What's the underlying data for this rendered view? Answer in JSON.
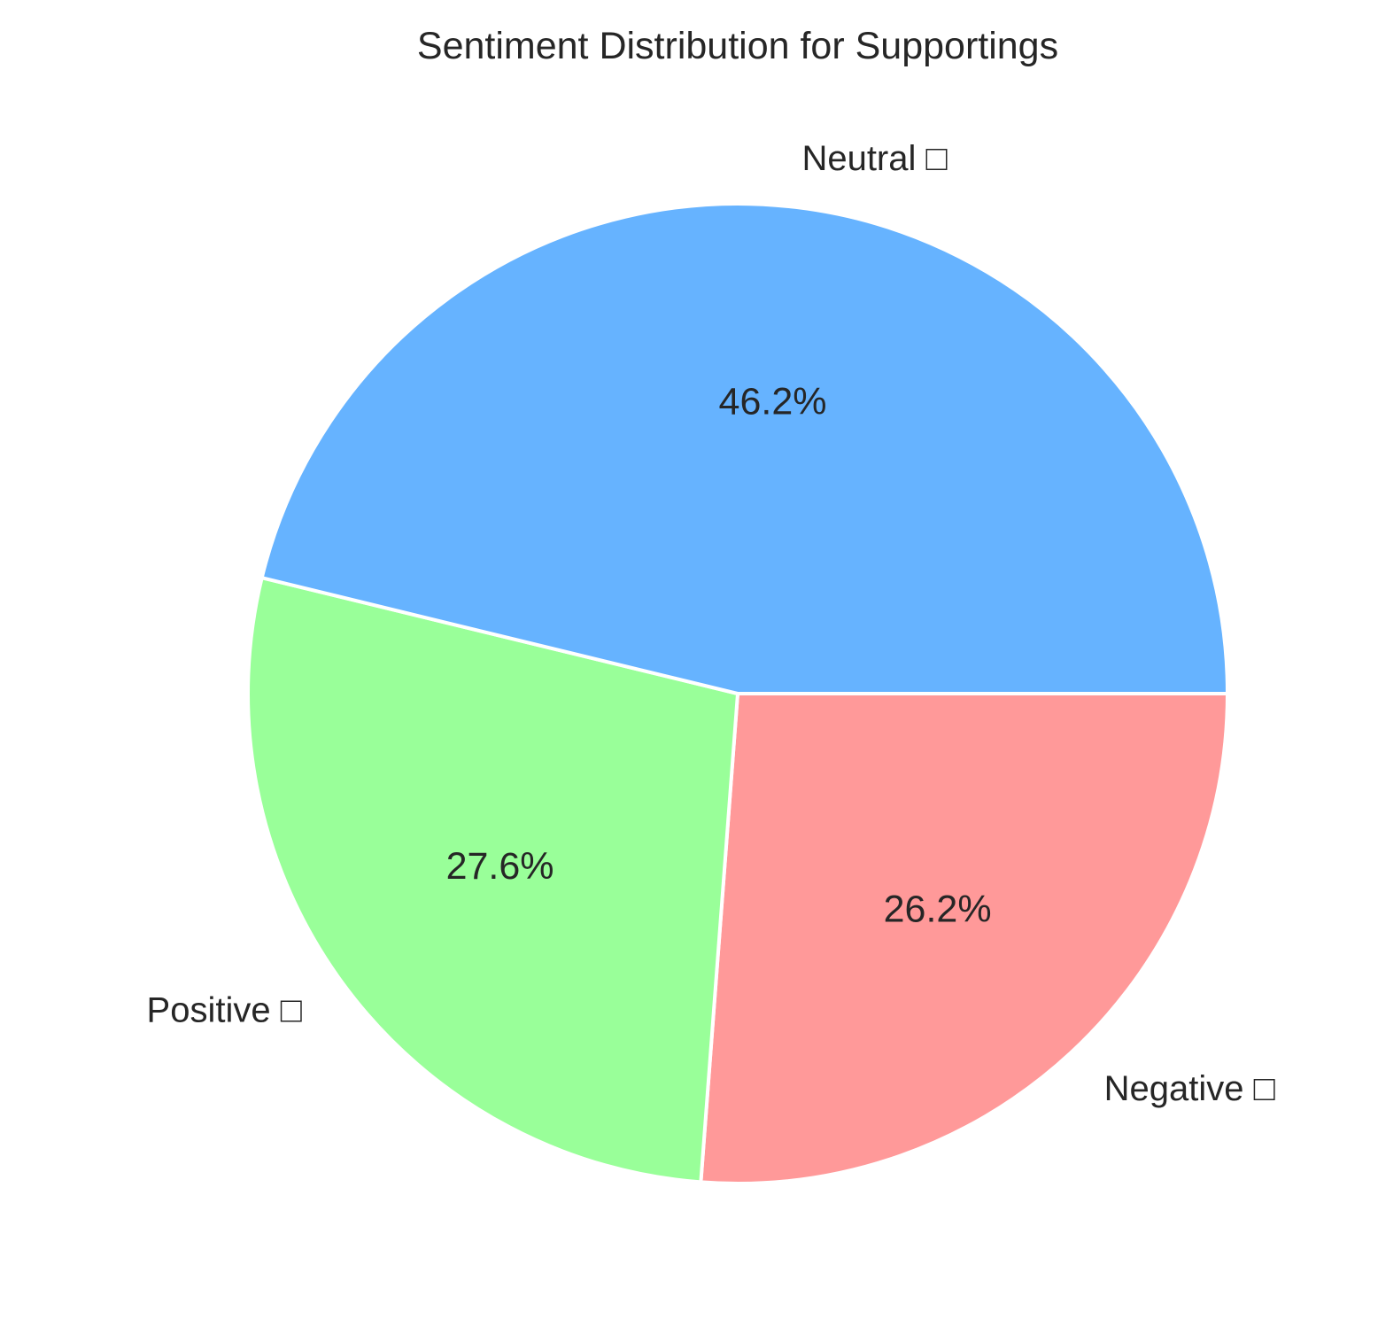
{
  "chart_data": {
    "type": "pie",
    "title": "Sentiment Distribution for Supportings",
    "slices": [
      {
        "label": "Negative □",
        "value": 26.2,
        "pct_label": "26.2%",
        "color": "#ff9999"
      },
      {
        "label": "Positive □",
        "value": 27.6,
        "pct_label": "27.6%",
        "color": "#99ff99"
      },
      {
        "label": "Neutral □",
        "value": 46.2,
        "pct_label": "46.2%",
        "color": "#66b3ff"
      }
    ],
    "start_angle_deg": 0,
    "direction": "clockwise",
    "legend": "none"
  }
}
